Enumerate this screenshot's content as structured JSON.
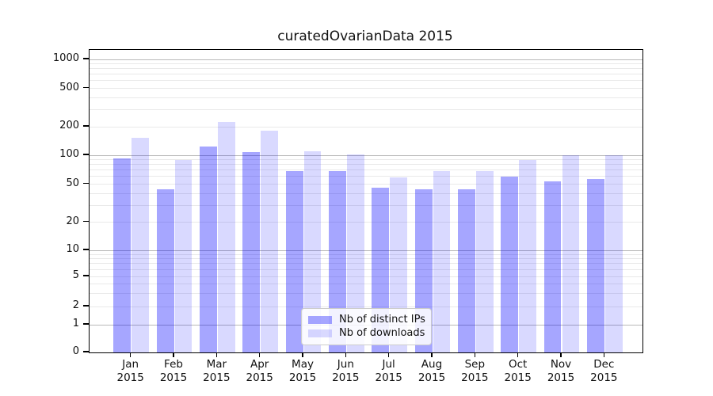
{
  "title": "curatedOvarianData 2015",
  "colors": {
    "ips_bar": "rgba(0,0,255,0.35)",
    "downloads_bar": "rgba(0,0,255,0.15)",
    "major_grid": "#b9b9b9",
    "minor_grid": "#e9e9e9",
    "axis": "#000000"
  },
  "chart_data": {
    "type": "bar",
    "title": "curatedOvarianData 2015",
    "categories": [
      "Jan",
      "Feb",
      "Mar",
      "Apr",
      "May",
      "Jun",
      "Jul",
      "Aug",
      "Sep",
      "Oct",
      "Nov",
      "Dec"
    ],
    "category_year": "2015",
    "series": [
      {
        "name": "Nb of distinct IPs",
        "color": "rgba(0,0,255,0.35)",
        "values": [
          92,
          44,
          123,
          107,
          69,
          69,
          46,
          44,
          44,
          60,
          53,
          57
        ]
      },
      {
        "name": "Nb of downloads",
        "color": "rgba(0,0,255,0.15)",
        "values": [
          152,
          90,
          222,
          182,
          110,
          102,
          59,
          68,
          68,
          90,
          100,
          100
        ]
      }
    ],
    "xlabel": "",
    "ylabel": "",
    "y_scale": "symlog-like (log above 1, linear 0-1)",
    "ylim": [
      0,
      1300
    ],
    "y_major_ticks": [
      1,
      10,
      100,
      1000
    ],
    "y_labeled_ticks": [
      0,
      1,
      2,
      5,
      10,
      20,
      50,
      100,
      200,
      500,
      1000
    ],
    "y_minor_grid_values": [
      2,
      3,
      4,
      5,
      6,
      7,
      8,
      9,
      20,
      30,
      40,
      50,
      60,
      70,
      80,
      90,
      200,
      300,
      400,
      500,
      600,
      700,
      800,
      900
    ],
    "grid": true,
    "legend_position": "lower center (inside axes)"
  }
}
